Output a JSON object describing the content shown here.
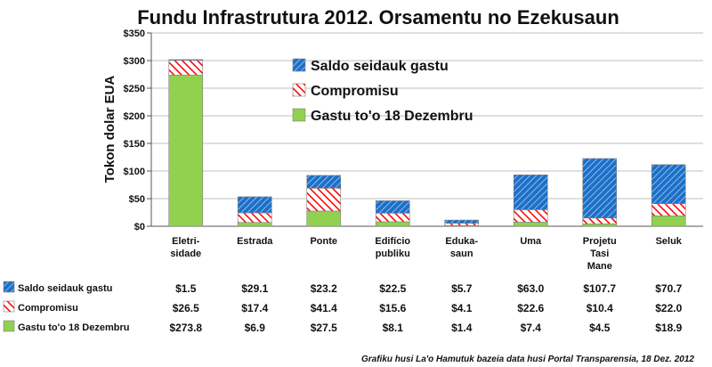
{
  "chart_data": {
    "type": "bar",
    "stacked": true,
    "title": "Fundu Infrastrutura 2012.  Orsamentu no Ezekusaun",
    "ylabel": "Tokon dolar EUA",
    "xlabel": "",
    "ylim": [
      0,
      350
    ],
    "yticks": [
      "$0",
      "$50",
      "$100",
      "$150",
      "$200",
      "$250",
      "$300",
      "$350"
    ],
    "ytick_values": [
      0,
      50,
      100,
      150,
      200,
      250,
      300,
      350
    ],
    "grid": true,
    "legend_position": "top-center",
    "categories": [
      [
        "Eletri-",
        "sidade"
      ],
      [
        "Estrada"
      ],
      [
        "Ponte"
      ],
      [
        "Edifício",
        "publiku"
      ],
      [
        "Eduka-",
        "saun"
      ],
      [
        "Uma"
      ],
      [
        "Projetu",
        "Tasi",
        "Mane"
      ],
      [
        "Seluk"
      ]
    ],
    "series": [
      {
        "name": "Gastu to'o 18 Dezembru",
        "color": "#92d050",
        "pattern": "solid",
        "values": [
          273.8,
          6.9,
          27.5,
          8.1,
          1.4,
          7.4,
          4.5,
          18.9
        ],
        "labels": [
          "$273.8",
          "$6.9",
          "$27.5",
          "$8.1",
          "$1.4",
          "$7.4",
          "$4.5",
          "$18.9"
        ]
      },
      {
        "name": "Compromisu",
        "color": "#ff0000",
        "pattern": "diagonal-stripes",
        "values": [
          26.5,
          17.4,
          41.4,
          15.6,
          4.1,
          22.6,
          10.4,
          22.0
        ],
        "labels": [
          "$26.5",
          "$17.4",
          "$41.4",
          "$15.6",
          "$4.1",
          "$22.6",
          "$10.4",
          "$22.0"
        ]
      },
      {
        "name": "Saldo seidauk gastu",
        "color": "#1f6fc5",
        "pattern": "dotted-hatch",
        "values": [
          1.5,
          29.1,
          23.2,
          22.5,
          5.7,
          63.0,
          107.7,
          70.7
        ],
        "labels": [
          "$1.5",
          "$29.1",
          "$23.2",
          "$22.5",
          "$5.7",
          "$63.0",
          "$107.7",
          "$70.7"
        ]
      }
    ],
    "legend_order": [
      "Saldo seidauk gastu",
      "Compromisu",
      "Gastu to'o 18 Dezembru"
    ],
    "table_row_order": [
      "Saldo seidauk gastu",
      "Compromisu",
      "Gastu to'o 18 Dezembru"
    ],
    "credit": "Grafiku husi La'o Hamutuk bazeia data husi Portal Transparensia, 18 Dez. 2012"
  }
}
